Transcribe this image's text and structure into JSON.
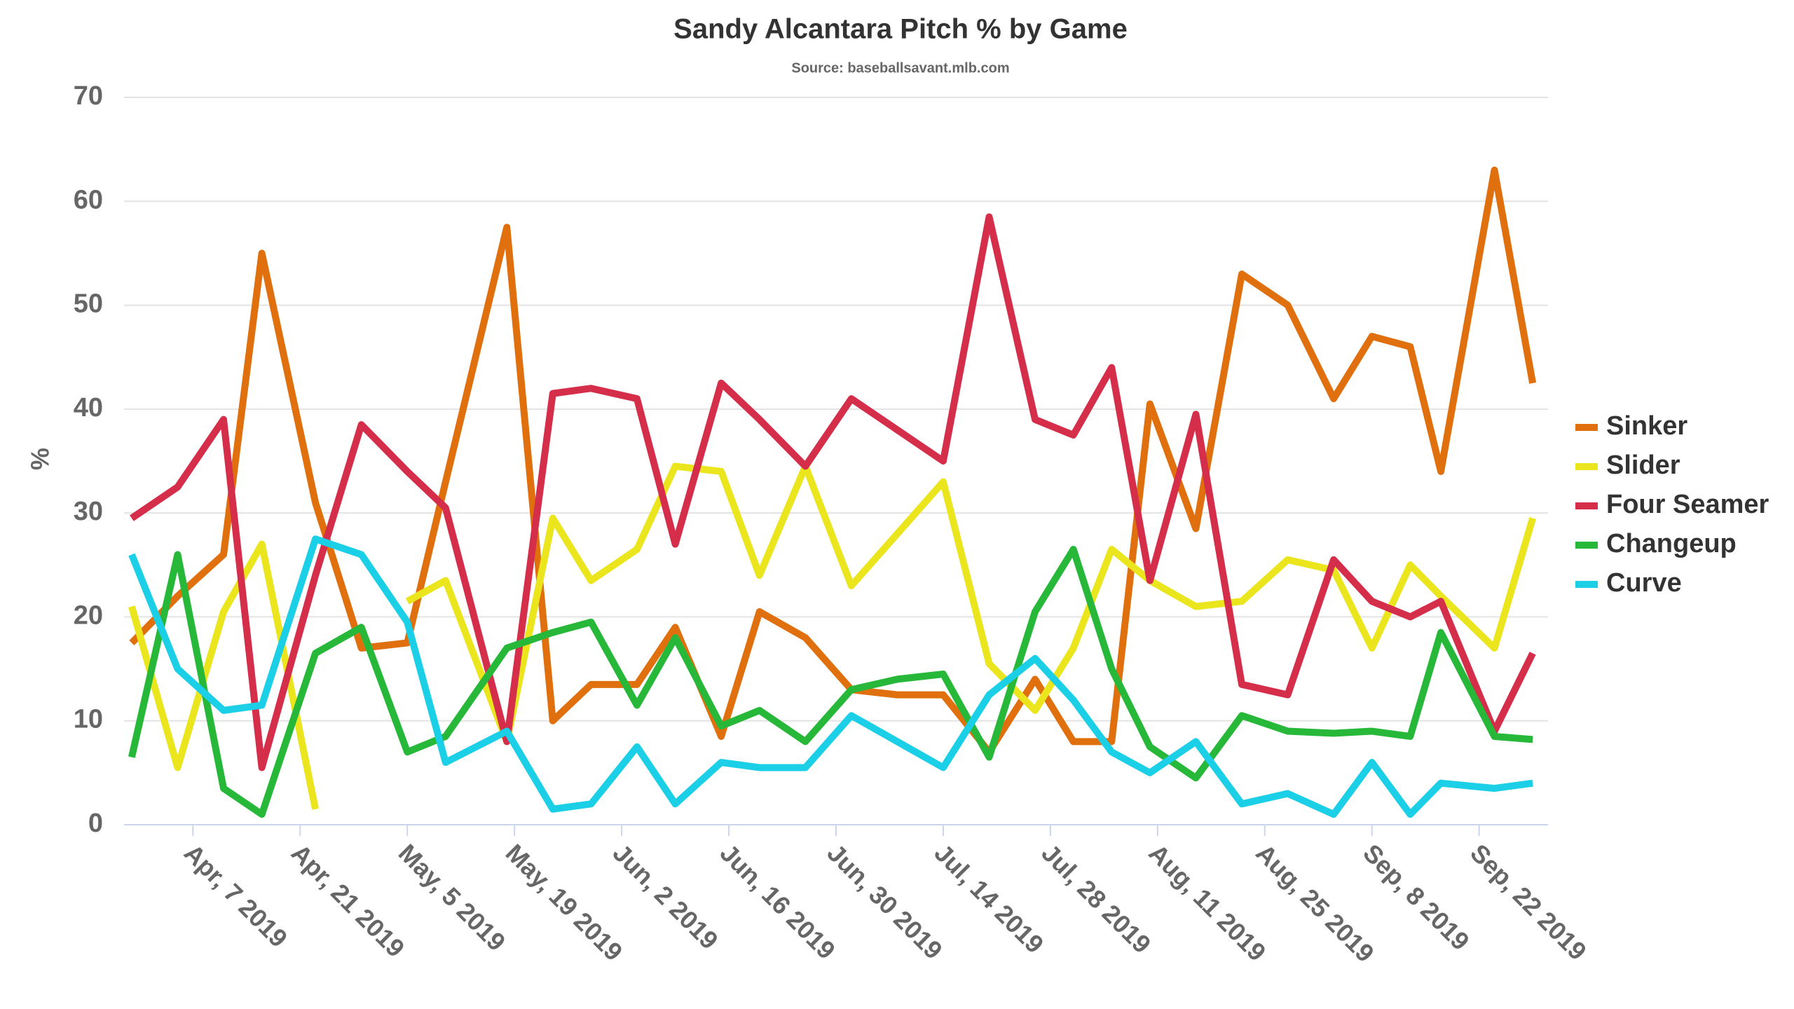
{
  "chart_data": {
    "type": "line",
    "title": "Sandy Alcantara Pitch % by Game",
    "subtitle": "Source: baseballsavant.mlb.com",
    "y_label": "%",
    "x": [
      "2019-03-30",
      "2019-04-05",
      "2019-04-11",
      "2019-04-16",
      "2019-04-23",
      "2019-04-29",
      "2019-05-05",
      "2019-05-10",
      "2019-05-18",
      "2019-05-24",
      "2019-05-29",
      "2019-06-04",
      "2019-06-09",
      "2019-06-15",
      "2019-06-20",
      "2019-06-26",
      "2019-07-02",
      "2019-07-08",
      "2019-07-14",
      "2019-07-20",
      "2019-07-26",
      "2019-07-31",
      "2019-08-05",
      "2019-08-10",
      "2019-08-16",
      "2019-08-22",
      "2019-08-28",
      "2019-09-03",
      "2019-09-08",
      "2019-09-13",
      "2019-09-17",
      "2019-09-24",
      "2019-09-29"
    ],
    "series": [
      {
        "name": "Sinker",
        "color": "#e0700e",
        "values": [
          17.5,
          22,
          26,
          55,
          31,
          17,
          17.5,
          33,
          57.5,
          10,
          13.5,
          13.5,
          19,
          8.5,
          20.5,
          18,
          13,
          12.5,
          12.5,
          7,
          14,
          8,
          8,
          40.5,
          28.5,
          53,
          50,
          41,
          47,
          46,
          34,
          63,
          42.5
        ]
      },
      {
        "name": "Slider",
        "color": "#eae51d",
        "values": [
          21,
          5.5,
          20.5,
          27,
          1.5,
          null,
          21.5,
          23.5,
          8,
          29.5,
          23.5,
          26.5,
          34.5,
          34,
          24,
          34.5,
          23,
          28,
          33,
          15.5,
          11,
          17,
          26.5,
          23.5,
          21,
          21.5,
          25.5,
          24.5,
          17,
          25,
          22,
          17,
          29.5
        ]
      },
      {
        "name": "Four Seamer",
        "color": "#d42e4a",
        "values": [
          29.5,
          32.5,
          39,
          5.5,
          24,
          38.5,
          34,
          30.5,
          8,
          41.5,
          42,
          41,
          27,
          42.5,
          39,
          34.5,
          41,
          38,
          35,
          58.5,
          39,
          37.5,
          44,
          23.5,
          39.5,
          13.5,
          12.5,
          25.5,
          21.5,
          20,
          21.5,
          9,
          16.5
        ]
      },
      {
        "name": "Changeup",
        "color": "#27b83a",
        "values": [
          6.5,
          26,
          3.5,
          1,
          16.5,
          19,
          7,
          8.5,
          17,
          18.5,
          19.5,
          11.5,
          18,
          9.5,
          11,
          8,
          13,
          14,
          14.5,
          6.5,
          20.5,
          26.5,
          15,
          7.5,
          4.5,
          10.5,
          9,
          8.8,
          9,
          8.5,
          18.5,
          8.5,
          8.2
        ]
      },
      {
        "name": "Curve",
        "color": "#1bcfe6",
        "values": [
          26,
          15,
          11,
          11.5,
          27.5,
          26,
          19.5,
          6,
          9,
          1.5,
          2,
          7.5,
          2,
          6,
          5.5,
          5.5,
          10.5,
          8,
          5.5,
          12.5,
          16,
          12,
          7,
          5,
          8,
          2,
          3,
          1,
          6,
          1,
          4,
          3.5,
          4
        ]
      }
    ],
    "xlim": [
      "2019-03-29",
      "2019-10-01"
    ],
    "xticks": [
      {
        "value": "2019-04-07",
        "label": "Apr, 7 2019"
      },
      {
        "value": "2019-04-21",
        "label": "Apr, 21 2019"
      },
      {
        "value": "2019-05-05",
        "label": "May, 5 2019"
      },
      {
        "value": "2019-05-19",
        "label": "May, 19 2019"
      },
      {
        "value": "2019-06-02",
        "label": "Jun, 2 2019"
      },
      {
        "value": "2019-06-16",
        "label": "Jun, 16 2019"
      },
      {
        "value": "2019-06-30",
        "label": "Jun, 30 2019"
      },
      {
        "value": "2019-07-14",
        "label": "Jul, 14 2019"
      },
      {
        "value": "2019-07-28",
        "label": "Jul, 28 2019"
      },
      {
        "value": "2019-08-11",
        "label": "Aug, 11 2019"
      },
      {
        "value": "2019-08-25",
        "label": "Aug, 25 2019"
      },
      {
        "value": "2019-09-08",
        "label": "Sep, 8 2019"
      },
      {
        "value": "2019-09-22",
        "label": "Sep, 22 2019"
      }
    ],
    "ylim": [
      0,
      70
    ],
    "yticks": [
      0,
      10,
      20,
      30,
      40,
      50,
      60,
      70
    ],
    "grid": true,
    "legend": "right"
  }
}
